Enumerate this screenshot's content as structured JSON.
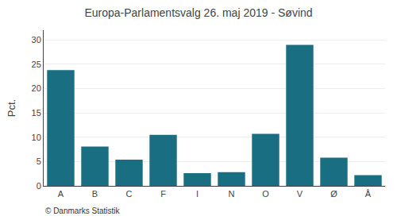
{
  "chart_data": {
    "type": "bar",
    "title": "Europa-Parlamentsvalg 26. maj 2019 - Søvind",
    "categories": [
      "A",
      "B",
      "C",
      "F",
      "I",
      "N",
      "O",
      "V",
      "Ø",
      "Å"
    ],
    "values": [
      23.8,
      8.1,
      5.4,
      10.5,
      2.6,
      2.8,
      10.7,
      29.0,
      5.8,
      2.2
    ],
    "color": "#1a6e82",
    "ylabel": "Pct.",
    "footer": "© Danmarks Statistik",
    "ylim": [
      0,
      32
    ],
    "yticks": [
      0,
      5,
      10,
      15,
      20,
      25,
      30
    ],
    "grid": true
  }
}
